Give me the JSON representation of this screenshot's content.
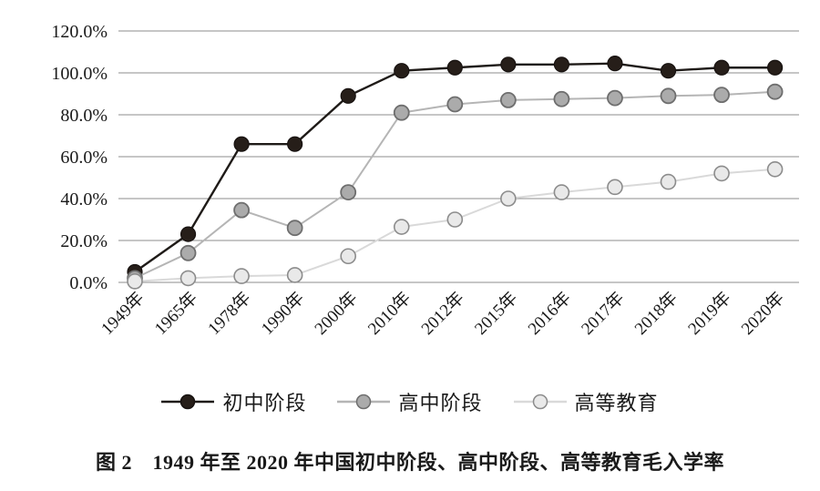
{
  "chart_data": {
    "type": "line",
    "title": "图 2　1949 年至 2020 年中国初中阶段、高中阶段、高等教育毛入学率",
    "categories": [
      "1949年",
      "1965年",
      "1978年",
      "1990年",
      "2000年",
      "2010年",
      "2012年",
      "2015年",
      "2016年",
      "2017年",
      "2018年",
      "2019年",
      "2020年"
    ],
    "series": [
      {
        "name": "初中阶段",
        "values": [
          5,
          23,
          66,
          66,
          89,
          101,
          102.5,
          104,
          104,
          104.5,
          101,
          102.5,
          102.5
        ],
        "line_color": "#1f1b18",
        "marker_fill": "#261e19",
        "marker_stroke": "#171210"
      },
      {
        "name": "高中阶段",
        "values": [
          2,
          14,
          34.5,
          26,
          43,
          81,
          85,
          87,
          87.5,
          88,
          89,
          89.5,
          91
        ],
        "line_color": "#b5b5b5",
        "marker_fill": "#ababab",
        "marker_stroke": "#6e6e6e"
      },
      {
        "name": "高等教育",
        "values": [
          0.5,
          2,
          3,
          3.5,
          12.5,
          26.5,
          30,
          40,
          43,
          45.5,
          48,
          52,
          54
        ],
        "line_color": "#d9d9d9",
        "marker_fill": "#e9e9e9",
        "marker_stroke": "#8c8c8c"
      }
    ],
    "yticks": [
      {
        "label": "120.0%",
        "value": 120
      },
      {
        "label": "100.0%",
        "value": 100
      },
      {
        "label": "80.0%",
        "value": 80
      },
      {
        "label": "60.0%",
        "value": 60
      },
      {
        "label": "40.0%",
        "value": 40
      },
      {
        "label": "20.0%",
        "value": 20
      },
      {
        "label": "0.0%",
        "value": 0
      }
    ],
    "ylim": [
      0,
      120
    ],
    "ytick_step": 20,
    "grid": true,
    "legend_position": "bottom",
    "grid_color": "#8c8c8c",
    "text_color": "#1a1a1a",
    "background": "#ffffff"
  }
}
